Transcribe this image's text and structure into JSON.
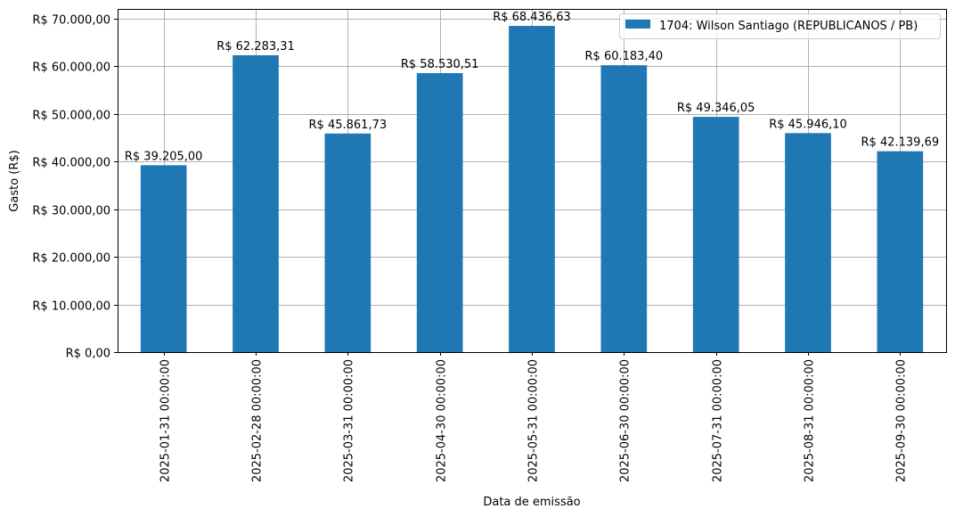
{
  "chart_data": {
    "type": "bar",
    "title": "",
    "xlabel": "Data de emissão",
    "ylabel": "Gasto (R$)",
    "ylim": [
      0,
      72000
    ],
    "yticks": [
      0,
      10000,
      20000,
      30000,
      40000,
      50000,
      60000,
      70000
    ],
    "ytick_labels": [
      "R$ 0,00",
      "R$ 10.000,00",
      "R$ 20.000,00",
      "R$ 30.000,00",
      "R$ 40.000,00",
      "R$ 50.000,00",
      "R$ 60.000,00",
      "R$ 70.000,00"
    ],
    "categories": [
      "2025-01-31 00:00:00",
      "2025-02-28 00:00:00",
      "2025-03-31 00:00:00",
      "2025-04-30 00:00:00",
      "2025-05-31 00:00:00",
      "2025-06-30 00:00:00",
      "2025-07-31 00:00:00",
      "2025-08-31 00:00:00",
      "2025-09-30 00:00:00"
    ],
    "series": [
      {
        "name": "1704: Wilson Santiago (REPUBLICANOS / PB)",
        "color": "#1f77b4",
        "values": [
          39205.0,
          62283.31,
          45861.73,
          58530.51,
          68436.63,
          60183.4,
          49346.05,
          45946.1,
          42139.69
        ],
        "labels": [
          "R$ 39.205,00",
          "R$ 62.283,31",
          "R$ 45.861,73",
          "R$ 58.530,51",
          "R$ 68.436,63",
          "R$ 60.183,40",
          "R$ 49.346,05",
          "R$ 45.946,10",
          "R$ 42.139,69"
        ]
      }
    ],
    "grid": true,
    "legend_position": "top-right"
  }
}
